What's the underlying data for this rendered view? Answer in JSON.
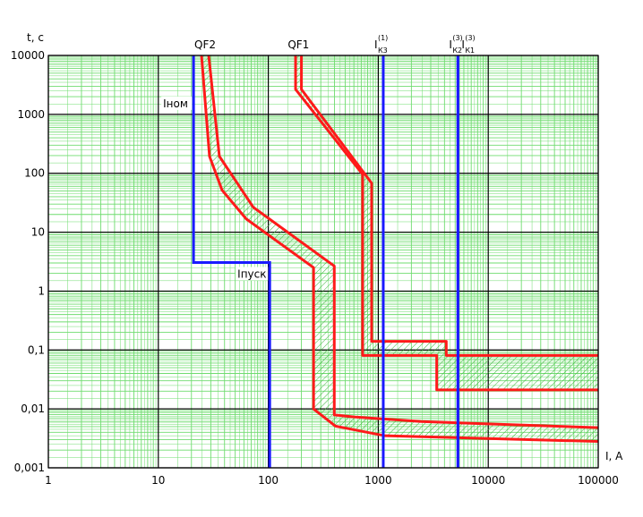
{
  "chart_data": {
    "type": "line",
    "y_axis_label": "t, с",
    "x_axis_label": "I, A",
    "xscale": "log",
    "yscale": "log",
    "xlim": [
      1,
      100000
    ],
    "ylim": [
      0.001,
      10000
    ],
    "xticks": [
      1,
      10,
      100,
      1000,
      10000,
      100000
    ],
    "yticks": [
      {
        "value": 0.001,
        "label": "0,001"
      },
      {
        "value": 0.01,
        "label": "0,01"
      },
      {
        "value": 0.1,
        "label": "0,1"
      },
      1,
      10,
      100,
      1000,
      10000
    ],
    "grid": true,
    "minor_grid_color": "#6fdc6f",
    "hatch_color": "#3cb43c",
    "series": [
      {
        "name": "QF2",
        "color": "#ff1a1a",
        "curves": [
          {
            "x": [
              24.7,
              29.2,
              38,
              63,
              258,
              258,
              408,
              1150,
              100000
            ],
            "y": [
              10000,
              194,
              51.6,
              16.8,
              2.5,
              0.01,
              0.0051,
              0.0035,
              0.0028
            ]
          },
          {
            "x": [
              28.7,
              35.9,
              73,
              398,
              398,
              600,
              2450,
              100000
            ],
            "y": [
              10000,
              194,
              26.5,
              2.66,
              0.0079,
              0.0073,
              0.0061,
              0.0048
            ]
          }
        ]
      },
      {
        "name": "QF1",
        "color": "#ff1a1a",
        "curves": [
          {
            "x": [
              177,
              177,
              720,
              720,
              3400,
              3400,
              100000
            ],
            "y": [
              10000,
              2660,
              96,
              0.081,
              0.081,
              0.021,
              0.021
            ]
          },
          {
            "x": [
              200,
              200,
              870,
              870,
              4150,
              4150,
              100000
            ],
            "y": [
              10000,
              2660,
              68,
              0.14,
              0.14,
              0.081,
              0.081
            ]
          }
        ]
      }
    ],
    "motor": {
      "color": "#1a1aff",
      "x": [
        20.9,
        20.9,
        103,
        103
      ],
      "y": [
        10000,
        3.05,
        3.05,
        0.001
      ],
      "labels": [
        "Iном",
        "Iпуск"
      ]
    },
    "currents": [
      {
        "label": "I",
        "sub": "К3",
        "sup": "(1)",
        "value": 1110,
        "color": "#1a1aff"
      },
      {
        "label": "I",
        "sub": "К2",
        "sup": "(3)",
        "value": 5300,
        "color": "#1a1aff"
      },
      {
        "label": "I",
        "sub": "К1",
        "sup": "(3)",
        "value": 5300,
        "color": "#1a1aff"
      }
    ]
  }
}
